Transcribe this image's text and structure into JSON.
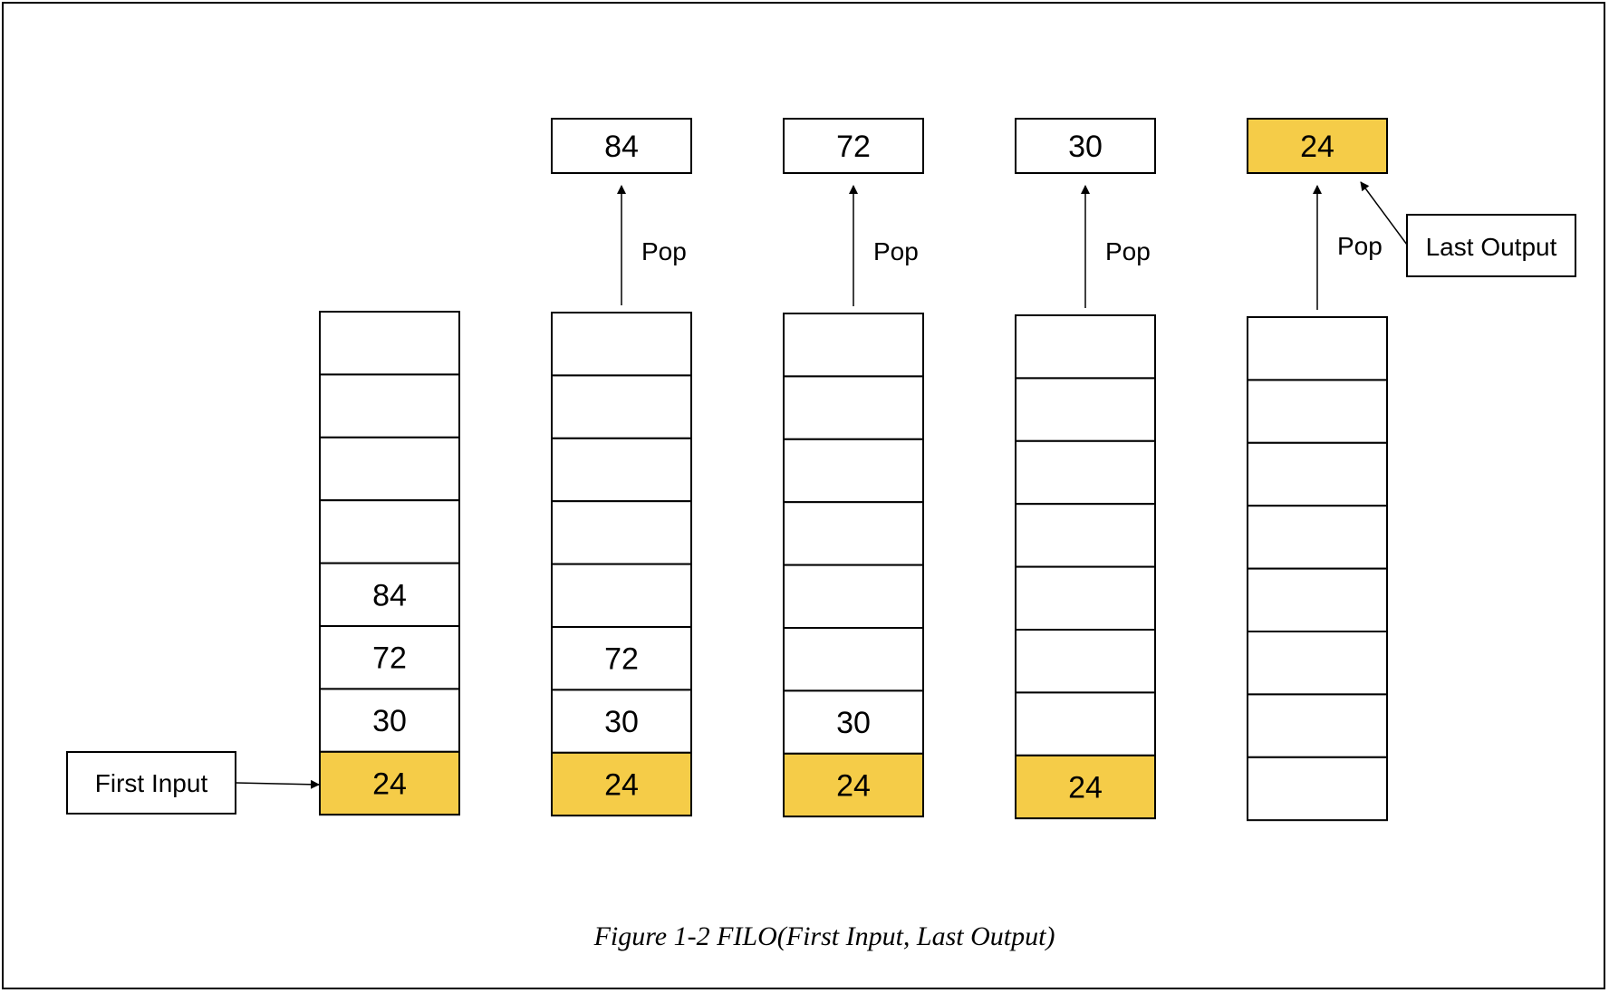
{
  "colors": {
    "highlight": "#F5CC48",
    "stroke": "#000000",
    "background": "#FFFFFF"
  },
  "caption": "Figure 1-2 FILO(First Input, Last Output)",
  "first_input_label": "First Input",
  "last_output_label": "Last Output",
  "pop_label": "Pop",
  "stacks": [
    {
      "cells": [
        "",
        "",
        "",
        "",
        "84",
        "72",
        "30",
        "24"
      ],
      "highlight_bottom": true
    },
    {
      "cells": [
        "",
        "",
        "",
        "",
        "",
        "72",
        "30",
        "24"
      ],
      "highlight_bottom": true,
      "popped": "84"
    },
    {
      "cells": [
        "",
        "",
        "",
        "",
        "",
        "",
        "30",
        "24"
      ],
      "highlight_bottom": true,
      "popped": "72"
    },
    {
      "cells": [
        "",
        "",
        "",
        "",
        "",
        "",
        "",
        "24"
      ],
      "highlight_bottom": true,
      "popped": "30"
    },
    {
      "cells": [
        "",
        "",
        "",
        "",
        "",
        "",
        "",
        ""
      ],
      "highlight_bottom": false,
      "popped": "24",
      "popped_highlight": true
    }
  ]
}
